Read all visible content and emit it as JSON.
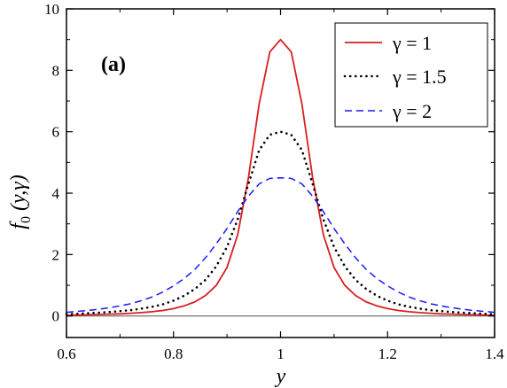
{
  "chart_data": {
    "type": "line",
    "panel_label": "(a)",
    "xlabel": "y",
    "ylabel": "f",
    "ylabel_sub": "0",
    "ylabel_args": "(y,γ)",
    "xlim": [
      0.6,
      1.4
    ],
    "ylim": [
      -0.7,
      10
    ],
    "xticks": [
      0.6,
      0.8,
      1,
      1.2,
      1.4
    ],
    "xtick_labels": [
      "0.6",
      "0.8",
      "1",
      "1.2",
      "1.4"
    ],
    "yticks": [
      0,
      2,
      4,
      6,
      8,
      10
    ],
    "ytick_labels": [
      "0",
      "2",
      "4",
      "6",
      "8",
      "10"
    ],
    "zero_line": true,
    "grid": false,
    "legend_position": "top-right",
    "series": [
      {
        "name": "γ = 1",
        "gamma": 1,
        "color": "#d62020",
        "dash": "solid"
      },
      {
        "name": "γ = 1.5",
        "gamma": 1.5,
        "color": "#000000",
        "dash": "dotted"
      },
      {
        "name": "γ = 2",
        "gamma": 2,
        "color": "#1a1aff",
        "dash": "dashed"
      }
    ],
    "x": [
      0.6,
      0.62,
      0.64,
      0.66,
      0.68,
      0.7,
      0.72,
      0.74,
      0.76,
      0.78,
      0.8,
      0.82,
      0.84,
      0.86,
      0.88,
      0.9,
      0.92,
      0.94,
      0.96,
      0.98,
      1.0,
      1.02,
      1.04,
      1.06,
      1.08,
      1.1,
      1.12,
      1.14,
      1.16,
      1.18,
      1.2,
      1.22,
      1.24,
      1.26,
      1.28,
      1.3,
      1.32,
      1.34,
      1.36,
      1.38,
      1.4
    ],
    "values": {
      "γ = 1": [
        0.02,
        0.03,
        0.04,
        0.05,
        0.06,
        0.07,
        0.09,
        0.11,
        0.14,
        0.18,
        0.24,
        0.33,
        0.46,
        0.67,
        1.0,
        1.58,
        2.65,
        4.5,
        6.9,
        8.6,
        9.0,
        8.6,
        6.9,
        4.5,
        2.65,
        1.58,
        1.0,
        0.67,
        0.46,
        0.33,
        0.24,
        0.18,
        0.14,
        0.11,
        0.09,
        0.07,
        0.06,
        0.05,
        0.04,
        0.03,
        0.02
      ],
      "γ = 1.5": [
        0.06,
        0.07,
        0.09,
        0.11,
        0.13,
        0.16,
        0.19,
        0.24,
        0.3,
        0.38,
        0.5,
        0.66,
        0.88,
        1.18,
        1.62,
        2.25,
        3.15,
        4.3,
        5.4,
        5.9,
        6.0,
        5.9,
        5.4,
        4.3,
        3.15,
        2.25,
        1.62,
        1.18,
        0.88,
        0.66,
        0.5,
        0.38,
        0.3,
        0.24,
        0.19,
        0.16,
        0.13,
        0.11,
        0.09,
        0.07,
        0.06
      ],
      "γ = 2": [
        0.12,
        0.15,
        0.18,
        0.22,
        0.27,
        0.33,
        0.4,
        0.5,
        0.62,
        0.78,
        0.98,
        1.22,
        1.52,
        1.9,
        2.35,
        2.85,
        3.4,
        3.9,
        4.3,
        4.48,
        4.5,
        4.48,
        4.3,
        3.9,
        3.4,
        2.85,
        2.35,
        1.9,
        1.52,
        1.22,
        0.98,
        0.78,
        0.62,
        0.5,
        0.4,
        0.33,
        0.27,
        0.22,
        0.18,
        0.15,
        0.12
      ]
    }
  }
}
